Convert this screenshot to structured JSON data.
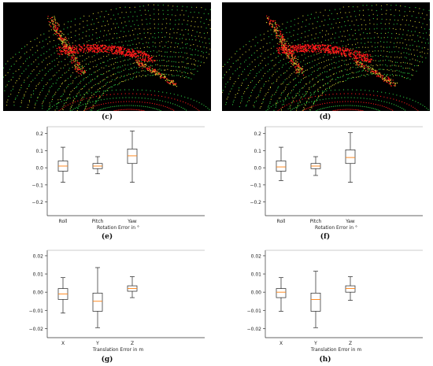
{
  "panels": {
    "c": {
      "label": "(c)"
    },
    "d": {
      "label": "(d)"
    },
    "e": {
      "label": "(e)"
    },
    "f": {
      "label": "(f)"
    },
    "g": {
      "label": "(g)"
    },
    "h": {
      "label": "(h)"
    }
  },
  "lidar_colors": {
    "background": "#000000",
    "primary": "#ff1a1a",
    "secondary": "#2ecc40",
    "mixed": "#c8c832"
  },
  "chart_data": [
    {
      "id": "e",
      "type": "box",
      "xlabel": "Rotation Error in °",
      "categories": [
        "Roll",
        "Pitch",
        "Yaw"
      ],
      "ylim": [
        -0.28,
        0.24
      ],
      "yticks": [
        -0.2,
        -0.1,
        0.0,
        0.1,
        0.2
      ],
      "ytick_labels": [
        "−0.2",
        "−0.1",
        "0.0",
        "0.1",
        "0.2"
      ],
      "boxes": [
        {
          "min": -0.085,
          "q1": -0.02,
          "median": 0.01,
          "q3": 0.04,
          "max": 0.12
        },
        {
          "min": -0.035,
          "q1": -0.005,
          "median": 0.01,
          "q3": 0.025,
          "max": 0.065
        },
        {
          "min": -0.085,
          "q1": 0.025,
          "median": 0.07,
          "q3": 0.11,
          "max": 0.215
        }
      ]
    },
    {
      "id": "f",
      "type": "box",
      "xlabel": "Rotation Error in °",
      "categories": [
        "Roll",
        "Pitch",
        "Yaw"
      ],
      "ylim": [
        -0.28,
        0.24
      ],
      "yticks": [
        -0.2,
        -0.1,
        0.0,
        0.1,
        0.2
      ],
      "ytick_labels": [
        "−0.2",
        "−0.1",
        "0.0",
        "0.1",
        "0.2"
      ],
      "boxes": [
        {
          "min": -0.075,
          "q1": -0.02,
          "median": 0.005,
          "q3": 0.04,
          "max": 0.12
        },
        {
          "min": -0.045,
          "q1": -0.005,
          "median": 0.01,
          "q3": 0.025,
          "max": 0.065
        },
        {
          "min": -0.085,
          "q1": 0.025,
          "median": 0.06,
          "q3": 0.105,
          "max": 0.205
        }
      ]
    },
    {
      "id": "g",
      "type": "box",
      "xlabel": "Translation Error in m",
      "categories": [
        "X",
        "Y",
        "Z"
      ],
      "ylim": [
        -0.025,
        0.023
      ],
      "yticks": [
        -0.02,
        -0.01,
        0.0,
        0.01,
        0.02
      ],
      "ytick_labels": [
        "−0.02",
        "−0.01",
        "0.00",
        "0.01",
        "0.02"
      ],
      "boxes": [
        {
          "min": -0.0115,
          "q1": -0.004,
          "median": -0.001,
          "q3": 0.002,
          "max": 0.008
        },
        {
          "min": -0.0195,
          "q1": -0.0105,
          "median": -0.005,
          "q3": -0.0005,
          "max": 0.0135
        },
        {
          "min": -0.003,
          "q1": 0.0005,
          "median": 0.002,
          "q3": 0.0035,
          "max": 0.0085
        }
      ]
    },
    {
      "id": "h",
      "type": "box",
      "xlabel": "Translation Error in m",
      "categories": [
        "X",
        "Y",
        "Z"
      ],
      "ylim": [
        -0.025,
        0.023
      ],
      "yticks": [
        -0.02,
        -0.01,
        0.0,
        0.01,
        0.02
      ],
      "ytick_labels": [
        "−0.02",
        "−0.01",
        "0.00",
        "0.01",
        "0.02"
      ],
      "boxes": [
        {
          "min": -0.0105,
          "q1": -0.003,
          "median": 0.0,
          "q3": 0.002,
          "max": 0.008
        },
        {
          "min": -0.0195,
          "q1": -0.0105,
          "median": -0.004,
          "q3": -0.0005,
          "max": 0.0115
        },
        {
          "min": -0.0045,
          "q1": 0.0,
          "median": 0.002,
          "q3": 0.0035,
          "max": 0.0085
        }
      ]
    }
  ]
}
